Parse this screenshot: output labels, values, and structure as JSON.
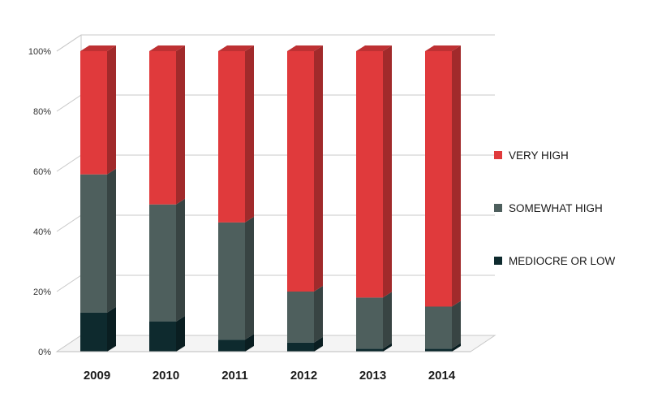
{
  "chart_data": {
    "type": "bar",
    "stacked": true,
    "percent": true,
    "three_d": true,
    "categories": [
      "2009",
      "2010",
      "2011",
      "2012",
      "2013",
      "2014"
    ],
    "series": [
      {
        "name": "MEDIOCRE OR LOW",
        "color": "#0e2a2e",
        "values": [
          13,
          10,
          4,
          3,
          1,
          1
        ]
      },
      {
        "name": "SOMEWHAT HIGH",
        "color": "#4e5f5d",
        "values": [
          46,
          39,
          39,
          17,
          17,
          14
        ]
      },
      {
        "name": "VERY HIGH",
        "color": "#e03a3c",
        "values": [
          41,
          51,
          57,
          80,
          82,
          85
        ]
      }
    ],
    "y_ticks": [
      "0%",
      "20%",
      "40%",
      "60%",
      "80%",
      "100%"
    ],
    "ylim": [
      0,
      100
    ],
    "grid": true,
    "legend_position": "right",
    "legend_order": [
      "VERY HIGH",
      "SOMEWHAT HIGH",
      "MEDIOCRE OR LOW"
    ]
  }
}
